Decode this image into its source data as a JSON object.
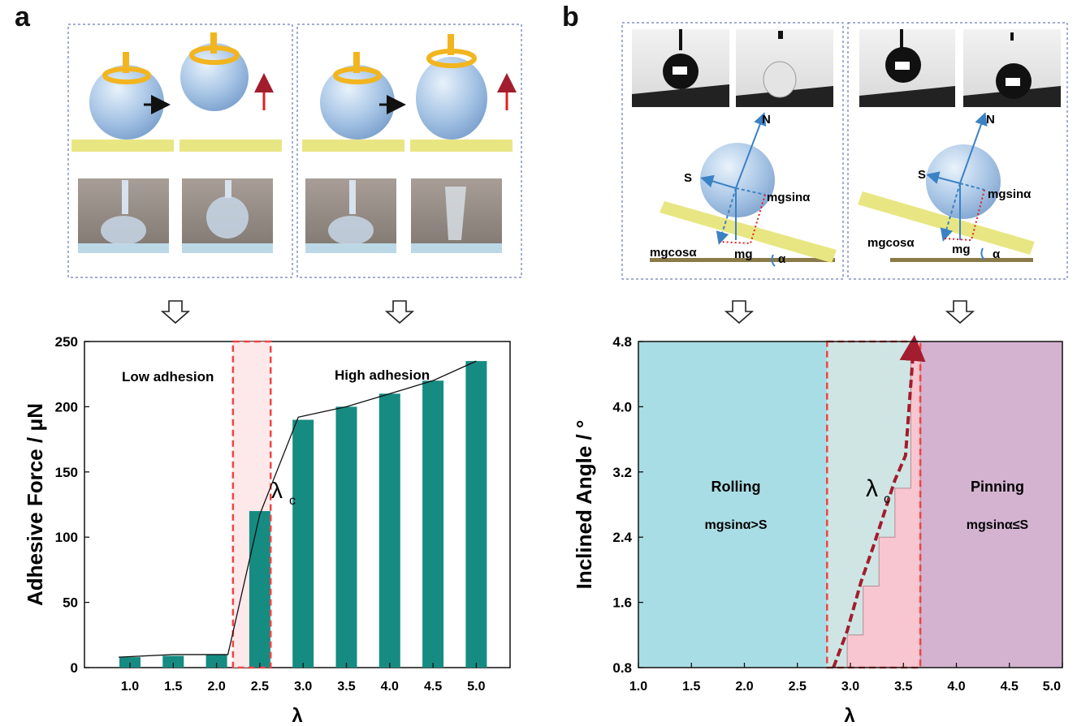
{
  "panels": {
    "a": {
      "label": "a"
    },
    "b": {
      "label": "b"
    }
  },
  "diagram_b": {
    "force_labels": {
      "N": "N",
      "S": "S",
      "mgsin": "mgsinα",
      "mgcos": "mgcosα",
      "mg": "mg",
      "alpha": "α"
    }
  },
  "chart_data": [
    {
      "type": "bar",
      "categories": [
        "1.0",
        "1.5",
        "2.0",
        "2.5",
        "3.0",
        "3.5",
        "4.0",
        "4.5",
        "5.0"
      ],
      "values": [
        8,
        9,
        10,
        120,
        190,
        200,
        210,
        220,
        235
      ],
      "xlabel": "λ",
      "ylabel": "Adhesive Force / μN",
      "ylim": [
        0,
        250
      ],
      "yticks": [
        "0",
        "50",
        "100",
        "150",
        "200",
        "250"
      ],
      "regions": {
        "low": "Low adhesion",
        "high": "High adhesion"
      },
      "critical_label": "λ",
      "critical_sub": "c",
      "colors": {
        "bar": "#168b82",
        "highlight": "#ef4444"
      }
    },
    {
      "type": "area",
      "xlabel": "λ",
      "ylabel": "Inclined Angle / °",
      "xlim": [
        1.0,
        5.0
      ],
      "ylim": [
        0.8,
        4.8
      ],
      "xticks": [
        "1.0",
        "1.5",
        "2.0",
        "2.5",
        "3.0",
        "3.5",
        "4.0",
        "4.5",
        "5.0"
      ],
      "yticks": [
        "0.8",
        "1.6",
        "2.4",
        "3.2",
        "4.0",
        "4.8"
      ],
      "step_boundary": {
        "x": [
          2.82,
          2.97,
          3.12,
          3.27,
          3.42,
          3.57,
          3.66
        ],
        "y": [
          0.8,
          1.2,
          1.8,
          2.4,
          3.0,
          4.8,
          4.8
        ]
      },
      "trend_line": {
        "x": [
          2.84,
          2.97,
          3.1,
          3.22,
          3.32,
          3.42,
          3.52,
          3.6
        ],
        "y": [
          0.8,
          1.25,
          1.85,
          2.3,
          2.7,
          3.1,
          3.4,
          4.8
        ]
      },
      "critical_band": [
        2.78,
        3.66
      ],
      "regions": {
        "rolling": {
          "title": "Rolling",
          "cond": "mgsinα>S"
        },
        "pinning": {
          "title": "Pinning",
          "cond": "mgsinα≤S"
        }
      },
      "critical_label": "λ",
      "critical_sub": "c",
      "colors": {
        "rolling": "#a9dde5",
        "pinning": "#d4b3d1",
        "critical": "#f7c6d0",
        "trend": "#a21d2e"
      }
    }
  ]
}
